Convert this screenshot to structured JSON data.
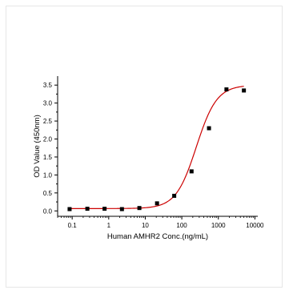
{
  "chart_data": {
    "type": "scatter",
    "xlabel": "Human AMHR2 Conc.(ng/mL)",
    "ylabel": "OD Value (450nm)",
    "x_scale": "log",
    "xlim": [
      0.04,
      12000
    ],
    "ylim": [
      -0.15,
      3.75
    ],
    "x_ticks": [
      0.1,
      1,
      10,
      100,
      1000,
      10000
    ],
    "x_tick_labels": [
      "0.1",
      "1",
      "10",
      "100",
      "1000",
      "10000"
    ],
    "y_ticks": [
      0.0,
      0.5,
      1.0,
      1.5,
      2.0,
      2.5,
      3.0,
      3.5
    ],
    "y_tick_labels": [
      "0.0",
      "0.5",
      "1.0",
      "1.5",
      "2.0",
      "2.5",
      "3.0",
      "3.5"
    ],
    "grid": false,
    "series": [
      {
        "kind": "points",
        "marker": "square",
        "color": "#000000",
        "x": [
          0.085,
          0.26,
          0.77,
          2.3,
          6.9,
          21,
          62,
          185,
          555,
          1667,
          5000
        ],
        "y": [
          0.05,
          0.06,
          0.06,
          0.05,
          0.08,
          0.21,
          0.42,
          1.1,
          2.3,
          3.38,
          3.35
        ]
      },
      {
        "kind": "fit_curve",
        "color": "#cc0000",
        "model": "4PL",
        "bottom": 0.065,
        "top": 3.5,
        "ec50": 250,
        "hill": 1.55,
        "x_range": [
          0.085,
          5000
        ]
      }
    ]
  }
}
